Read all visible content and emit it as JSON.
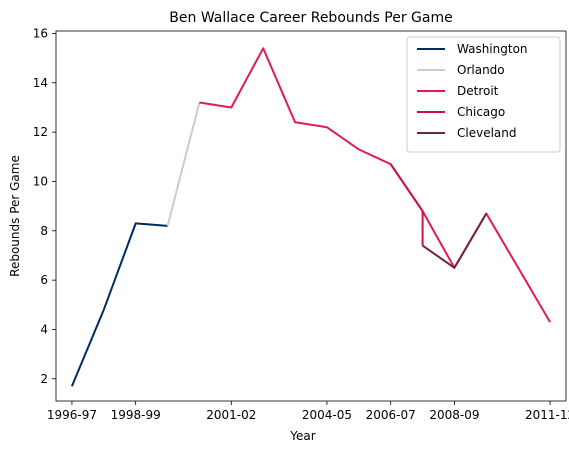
{
  "chart_data": {
    "type": "line",
    "title": "Ben Wallace Career Rebounds Per Game",
    "xlabel": "Year",
    "ylabel": "Rebounds Per Game",
    "x_tick_labels": [
      "1996-97",
      "1998-99",
      "2001-02",
      "2004-05",
      "2006-07",
      "2008-09",
      "2011-12"
    ],
    "x_tick_index": [
      0,
      2,
      5,
      8,
      10,
      12,
      15
    ],
    "xlim": [
      -0.5,
      15.5
    ],
    "ylim": [
      1.1,
      16.1
    ],
    "y_ticks": [
      2,
      4,
      6,
      8,
      10,
      12,
      14,
      16
    ],
    "grid": false,
    "legend_position": "top-right",
    "series": [
      {
        "name": "Washington",
        "color": "#002B5C",
        "points": [
          [
            0,
            1.7
          ],
          [
            1,
            4.8
          ],
          [
            2,
            8.3
          ],
          [
            3,
            8.2
          ]
        ]
      },
      {
        "name": "Orlando",
        "color": "#C4CED4",
        "points": [
          [
            3,
            8.2
          ],
          [
            4,
            13.2
          ]
        ]
      },
      {
        "name": "Detroit",
        "color": "#E31B54",
        "points": [
          [
            4,
            13.2
          ],
          [
            5,
            13.0
          ],
          [
            6,
            15.4
          ],
          [
            7,
            12.4
          ],
          [
            8,
            12.2
          ],
          [
            9,
            11.3
          ],
          [
            10,
            10.7
          ],
          [
            11,
            8.8
          ],
          [
            12,
            6.5
          ],
          [
            13,
            8.7
          ],
          [
            14,
            6.5
          ],
          [
            15,
            4.3
          ]
        ]
      },
      {
        "name": "Chicago",
        "color": "#CE1141",
        "points": [
          [
            10,
            10.7
          ],
          [
            11,
            8.8
          ],
          [
            11,
            7.4
          ]
        ]
      },
      {
        "name": "Cleveland",
        "color": "#6F263D",
        "points": [
          [
            11,
            7.4
          ],
          [
            12,
            6.5
          ],
          [
            13,
            8.7
          ]
        ]
      }
    ]
  }
}
